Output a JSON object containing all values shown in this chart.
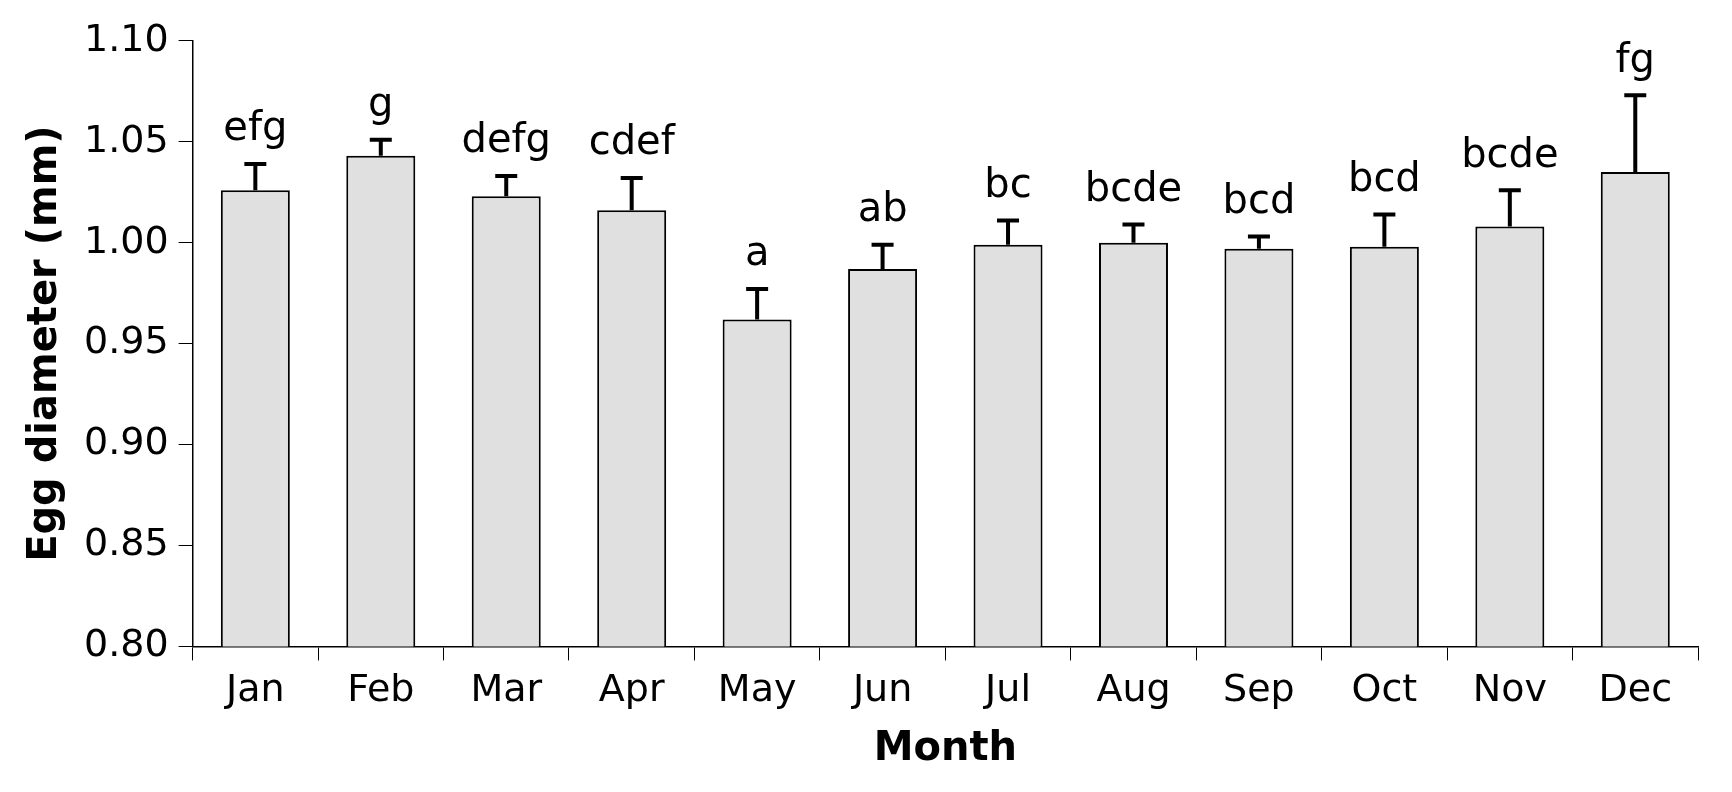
{
  "chart_data": {
    "type": "bar",
    "xlabel": "Month",
    "ylabel": "Egg diameter (mm)",
    "categories": [
      "Jan",
      "Feb",
      "Mar",
      "Apr",
      "May",
      "Jun",
      "Jul",
      "Aug",
      "Sep",
      "Oct",
      "Nov",
      "Dec"
    ],
    "values": [
      1.026,
      1.043,
      1.023,
      1.016,
      0.962,
      0.987,
      0.999,
      1.0,
      0.997,
      0.998,
      1.008,
      1.035
    ],
    "errors": [
      [
        1.026,
        1.039
      ],
      [
        1.043,
        1.051
      ],
      [
        1.023,
        1.033
      ],
      [
        1.016,
        1.032
      ],
      [
        0.962,
        0.977
      ],
      [
        0.987,
        0.999
      ],
      [
        0.999,
        1.011
      ],
      [
        1.0,
        1.009
      ],
      [
        0.997,
        1.003
      ],
      [
        0.998,
        1.014
      ],
      [
        1.008,
        1.026
      ],
      [
        1.035,
        1.073
      ]
    ],
    "value_labels": [
      "efg",
      "g",
      "defg",
      "cdef",
      "a",
      "ab",
      "bc",
      "bcde",
      "bcd",
      "bcd",
      "bcde",
      "fg"
    ],
    "color": "#e0e0e0",
    "ylim": [
      0.8,
      1.1
    ],
    "yticks": [
      {
        "value": 0.8,
        "label": "0.80"
      },
      {
        "value": 0.85,
        "label": "0.85"
      },
      {
        "value": 0.9,
        "label": "0.90"
      },
      {
        "value": 0.95,
        "label": "0.95"
      },
      {
        "value": 1.0,
        "label": "1.00"
      },
      {
        "value": 1.05,
        "label": "1.05"
      },
      {
        "value": 1.1,
        "label": "1.10"
      }
    ],
    "grid": false,
    "legend": false
  }
}
